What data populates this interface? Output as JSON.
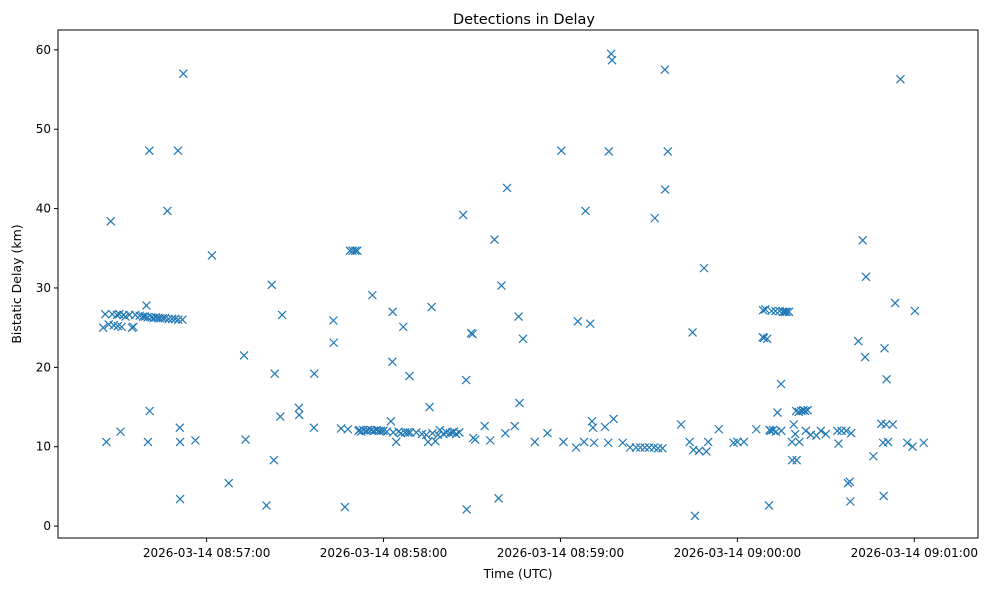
{
  "chart_data": {
    "type": "scatter",
    "title": "Detections in Delay",
    "xlabel": "Time (UTC)",
    "ylabel": "Bistatic Delay (km)",
    "x_unit": "seconds after 2026-03-14 08:56:00",
    "xlim": [
      9.6,
      321.6
    ],
    "ylim": [
      -1.5,
      62.5
    ],
    "xticks": [
      {
        "value": 60,
        "label": "2026-03-14 08:57:00"
      },
      {
        "value": 120,
        "label": "2026-03-14 08:58:00"
      },
      {
        "value": 180,
        "label": "2026-03-14 08:59:00"
      },
      {
        "value": 240,
        "label": "2026-03-14 09:00:00"
      },
      {
        "value": 300,
        "label": "2026-03-14 09:01:00"
      }
    ],
    "yticks": [
      0,
      10,
      20,
      30,
      40,
      50,
      60
    ],
    "marker": "x",
    "color": "#1f77b4",
    "series": [
      {
        "name": "detections",
        "points": [
          [
            24.9,
            25.0
          ],
          [
            25.6,
            26.7
          ],
          [
            26.0,
            10.6
          ],
          [
            26.8,
            25.4
          ],
          [
            27.5,
            38.4
          ],
          [
            28.0,
            26.7
          ],
          [
            28.5,
            25.3
          ],
          [
            29.6,
            26.6
          ],
          [
            29.9,
            25.2
          ],
          [
            30.4,
            26.7
          ],
          [
            30.8,
            11.9
          ],
          [
            31.2,
            25.1
          ],
          [
            31.8,
            26.6
          ],
          [
            32.5,
            26.4
          ],
          [
            33.8,
            26.6
          ],
          [
            34.7,
            25.0
          ],
          [
            35.2,
            25.1
          ],
          [
            35.8,
            26.6
          ],
          [
            37.3,
            26.5
          ],
          [
            38.4,
            26.4
          ],
          [
            39.1,
            26.4
          ],
          [
            39.6,
            27.8
          ],
          [
            40.0,
            26.3
          ],
          [
            40.1,
            10.6
          ],
          [
            40.6,
            47.3
          ],
          [
            40.7,
            14.5
          ],
          [
            41.3,
            26.3
          ],
          [
            42.0,
            26.2
          ],
          [
            42.8,
            26.3
          ],
          [
            43.5,
            26.2
          ],
          [
            44.2,
            26.2
          ],
          [
            45.1,
            26.2
          ],
          [
            45.9,
            26.2
          ],
          [
            46.7,
            39.7
          ],
          [
            47.1,
            26.1
          ],
          [
            48.3,
            26.1
          ],
          [
            49.3,
            26.1
          ],
          [
            50.3,
            47.3
          ],
          [
            50.4,
            26.0
          ],
          [
            50.9,
            12.4
          ],
          [
            51.0,
            10.6
          ],
          [
            51.0,
            3.4
          ],
          [
            51.8,
            26.0
          ],
          [
            52.1,
            57.0
          ],
          [
            56.2,
            10.8
          ],
          [
            61.8,
            34.1
          ],
          [
            67.5,
            5.4
          ],
          [
            72.7,
            21.5
          ],
          [
            73.2,
            10.9
          ],
          [
            80.3,
            2.6
          ],
          [
            82.1,
            30.4
          ],
          [
            82.8,
            8.3
          ],
          [
            83.1,
            19.2
          ],
          [
            85.0,
            13.8
          ],
          [
            85.6,
            26.6
          ],
          [
            91.3,
            14.9
          ],
          [
            91.4,
            14.0
          ],
          [
            96.5,
            19.2
          ],
          [
            96.4,
            12.4
          ],
          [
            103.0,
            25.9
          ],
          [
            103.1,
            23.1
          ],
          [
            105.6,
            12.3
          ],
          [
            106.9,
            2.4
          ],
          [
            107.9,
            12.2
          ],
          [
            108.6,
            34.7
          ],
          [
            109.5,
            34.7
          ],
          [
            110.4,
            34.7
          ],
          [
            111.1,
            34.7
          ],
          [
            111.5,
            12.0
          ],
          [
            111.9,
            12.1
          ],
          [
            112.4,
            11.9
          ],
          [
            113.1,
            12.1
          ],
          [
            114.1,
            12.0
          ],
          [
            114.8,
            12.1
          ],
          [
            115.8,
            12.1
          ],
          [
            116.2,
            29.1
          ],
          [
            116.7,
            12.0
          ],
          [
            117.6,
            12.1
          ],
          [
            118.4,
            12.0
          ],
          [
            119.2,
            12.0
          ],
          [
            120.0,
            12.0
          ],
          [
            121.1,
            11.9
          ],
          [
            122.5,
            13.2
          ],
          [
            123.0,
            20.7
          ],
          [
            123.1,
            27.0
          ],
          [
            123.3,
            11.8
          ],
          [
            124.3,
            10.6
          ],
          [
            125.1,
            11.9
          ],
          [
            125.9,
            11.7
          ],
          [
            126.7,
            25.1
          ],
          [
            127.3,
            11.8
          ],
          [
            128.2,
            11.8
          ],
          [
            128.8,
            18.9
          ],
          [
            129.0,
            11.8
          ],
          [
            131.1,
            11.8
          ],
          [
            133.0,
            11.6
          ],
          [
            134.5,
            11.5
          ],
          [
            135.1,
            10.6
          ],
          [
            135.6,
            15.0
          ],
          [
            136.3,
            27.6
          ],
          [
            136.6,
            11.7
          ],
          [
            137.6,
            10.7
          ],
          [
            138.5,
            11.5
          ],
          [
            139.1,
            12.1
          ],
          [
            140.3,
            11.6
          ],
          [
            141.3,
            11.8
          ],
          [
            142.5,
            11.7
          ],
          [
            143.3,
            11.8
          ],
          [
            143.9,
            11.9
          ],
          [
            144.6,
            11.6
          ],
          [
            145.7,
            11.8
          ],
          [
            147.0,
            39.2
          ],
          [
            148.0,
            18.4
          ],
          [
            148.2,
            2.1
          ],
          [
            149.7,
            24.3
          ],
          [
            150.2,
            24.2
          ],
          [
            150.4,
            11.1
          ],
          [
            151.1,
            10.9
          ],
          [
            154.3,
            12.6
          ],
          [
            156.2,
            10.8
          ],
          [
            157.6,
            36.1
          ],
          [
            159.0,
            3.5
          ],
          [
            160.0,
            30.3
          ],
          [
            161.3,
            11.7
          ],
          [
            161.9,
            42.6
          ],
          [
            164.5,
            12.6
          ],
          [
            165.8,
            26.4
          ],
          [
            166.1,
            15.5
          ],
          [
            167.3,
            23.6
          ],
          [
            171.3,
            10.6
          ],
          [
            175.6,
            11.7
          ],
          [
            180.3,
            47.3
          ],
          [
            181.0,
            10.6
          ],
          [
            185.3,
            9.9
          ],
          [
            185.9,
            25.8
          ],
          [
            188.0,
            10.6
          ],
          [
            188.5,
            39.7
          ],
          [
            190.1,
            25.5
          ],
          [
            190.7,
            13.2
          ],
          [
            191.0,
            12.4
          ],
          [
            191.4,
            10.5
          ],
          [
            195.1,
            12.5
          ],
          [
            196.2,
            10.5
          ],
          [
            196.4,
            47.2
          ],
          [
            197.2,
            59.5
          ],
          [
            197.5,
            58.7
          ],
          [
            198.0,
            13.5
          ],
          [
            201.1,
            10.5
          ],
          [
            203.6,
            9.9
          ],
          [
            205.6,
            9.9
          ],
          [
            207.1,
            9.9
          ],
          [
            208.6,
            9.9
          ],
          [
            210.1,
            9.9
          ],
          [
            211.7,
            9.9
          ],
          [
            213.1,
            9.8
          ],
          [
            212.0,
            38.8
          ],
          [
            214.6,
            9.8
          ],
          [
            215.4,
            57.5
          ],
          [
            215.5,
            42.4
          ],
          [
            216.4,
            47.2
          ],
          [
            220.9,
            12.8
          ],
          [
            223.8,
            10.6
          ],
          [
            224.8,
            24.4
          ],
          [
            225.1,
            9.6
          ],
          [
            225.6,
            1.3
          ],
          [
            227.0,
            9.5
          ],
          [
            228.7,
            32.5
          ],
          [
            229.5,
            9.4
          ],
          [
            230.1,
            10.6
          ],
          [
            233.7,
            12.2
          ],
          [
            238.7,
            10.5
          ],
          [
            240.0,
            10.6
          ],
          [
            242.2,
            10.6
          ],
          [
            246.4,
            12.2
          ],
          [
            248.7,
            27.2
          ],
          [
            249.5,
            27.3
          ],
          [
            248.6,
            23.8
          ],
          [
            249.0,
            23.7
          ],
          [
            250.1,
            23.6
          ],
          [
            250.9,
            12.1
          ],
          [
            251.6,
            27.1
          ],
          [
            251.3,
            12.0
          ],
          [
            252.1,
            12.1
          ],
          [
            252.9,
            27.1
          ],
          [
            253.1,
            11.9
          ],
          [
            253.6,
            14.3
          ],
          [
            254.3,
            27.1
          ],
          [
            254.9,
            12.0
          ],
          [
            255.5,
            27.0
          ],
          [
            256.1,
            27.0
          ],
          [
            256.7,
            27.0
          ],
          [
            257.5,
            27.0
          ],
          [
            254.8,
            17.9
          ],
          [
            250.7,
            2.6
          ],
          [
            258.5,
            10.6
          ],
          [
            258.6,
            8.3
          ],
          [
            259.1,
            12.8
          ],
          [
            259.6,
            11.6
          ],
          [
            259.9,
            14.5
          ],
          [
            260.1,
            8.3
          ],
          [
            260.8,
            14.4
          ],
          [
            261.0,
            10.6
          ],
          [
            261.7,
            14.5
          ],
          [
            262.4,
            14.6
          ],
          [
            263.0,
            14.5
          ],
          [
            263.8,
            14.6
          ],
          [
            263.2,
            12.0
          ],
          [
            264.9,
            11.5
          ],
          [
            266.8,
            11.4
          ],
          [
            268.3,
            12.0
          ],
          [
            270.0,
            11.6
          ],
          [
            273.9,
            12.0
          ],
          [
            274.3,
            10.4
          ],
          [
            275.3,
            12.0
          ],
          [
            276.9,
            12.0
          ],
          [
            277.5,
            5.4
          ],
          [
            278.1,
            5.6
          ],
          [
            278.3,
            3.1
          ],
          [
            278.6,
            11.7
          ],
          [
            281.0,
            23.3
          ],
          [
            282.5,
            36.0
          ],
          [
            283.3,
            21.3
          ],
          [
            283.6,
            31.4
          ],
          [
            286.1,
            8.8
          ],
          [
            288.8,
            12.9
          ],
          [
            289.4,
            10.5
          ],
          [
            289.6,
            3.8
          ],
          [
            289.9,
            22.4
          ],
          [
            290.4,
            12.8
          ],
          [
            290.6,
            18.5
          ],
          [
            291.1,
            10.6
          ],
          [
            292.7,
            12.8
          ],
          [
            293.5,
            28.1
          ],
          [
            295.3,
            56.3
          ],
          [
            297.6,
            10.5
          ],
          [
            299.4,
            10.0
          ],
          [
            300.2,
            27.1
          ],
          [
            303.2,
            10.5
          ]
        ]
      }
    ]
  }
}
